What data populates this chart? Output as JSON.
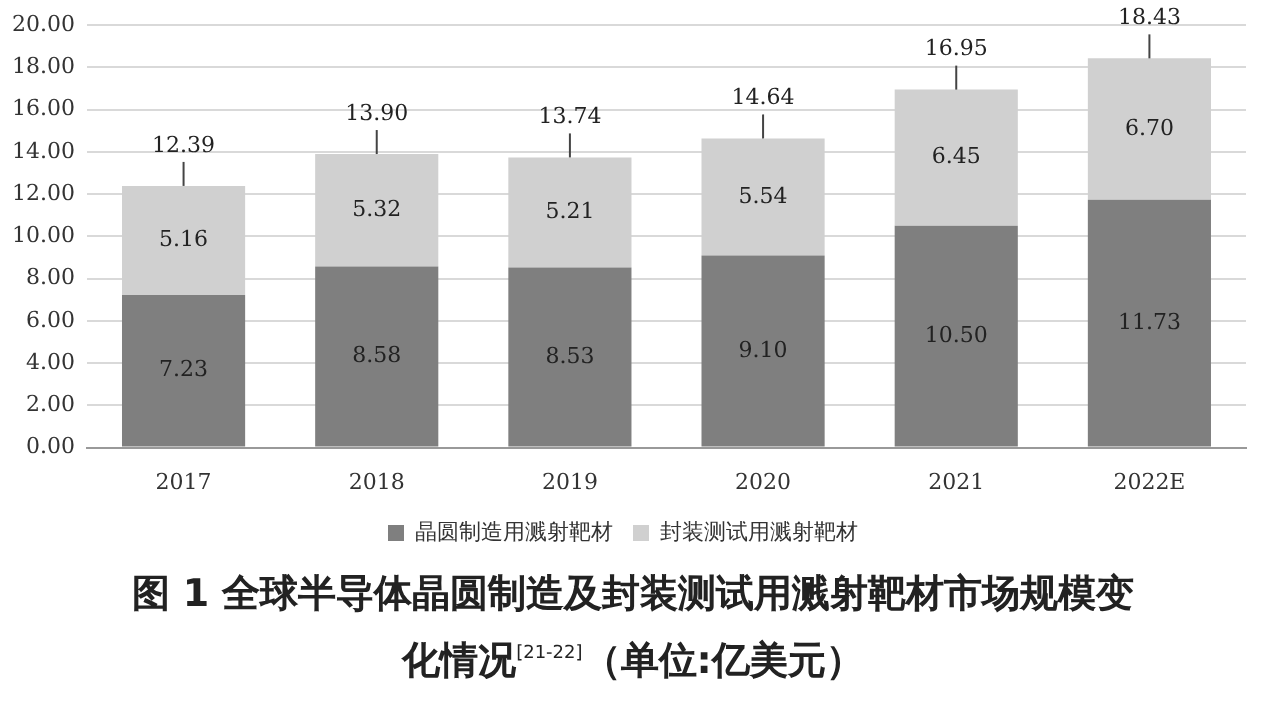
{
  "chart_data": {
    "type": "bar",
    "title": "图 1  全球半导体晶圆制造及封装测试用溅射靶材市场规模变化情况$^{[21-22]}$（单位:亿美元）",
    "categories": [
      "2017",
      "2018",
      "2019",
      "2020",
      "2021",
      "2022E"
    ],
    "stacked": true,
    "series": [
      {
        "name": "晶圆制造用溅射靶材",
        "color": "#7f7f7f",
        "values": [
          7.23,
          8.58,
          8.53,
          9.1,
          10.5,
          11.73
        ],
        "value_labels": [
          "7.23",
          "8.58",
          "8.53",
          "9.10",
          "10.50",
          "11.73"
        ]
      },
      {
        "name": "封装测试用溅射靶材",
        "color": "#d0d0d0",
        "values": [
          5.16,
          5.32,
          5.21,
          5.54,
          6.45,
          6.7
        ],
        "value_labels": [
          "5.16",
          "5.32",
          "5.21",
          "5.54",
          "6.45",
          "6.70"
        ]
      }
    ],
    "totals": [
      "12.39",
      "13.90",
      "13.74",
      "14.64",
      "16.95",
      "18.43"
    ],
    "ylim": [
      0,
      20
    ],
    "yticks": [
      {
        "value": 0,
        "label": "0.00"
      },
      {
        "value": 2,
        "label": "2.00"
      },
      {
        "value": 4,
        "label": "4.00"
      },
      {
        "value": 6,
        "label": "6.00"
      },
      {
        "value": 8,
        "label": "8.00"
      },
      {
        "value": 10,
        "label": "10.00"
      },
      {
        "value": 12,
        "label": "12.00"
      },
      {
        "value": 14,
        "label": "14.00"
      },
      {
        "value": 16,
        "label": "16.00"
      },
      {
        "value": 18,
        "label": "18.00"
      },
      {
        "value": 20,
        "label": "20.00"
      }
    ],
    "grid": "y",
    "legend": "bottom"
  }
}
